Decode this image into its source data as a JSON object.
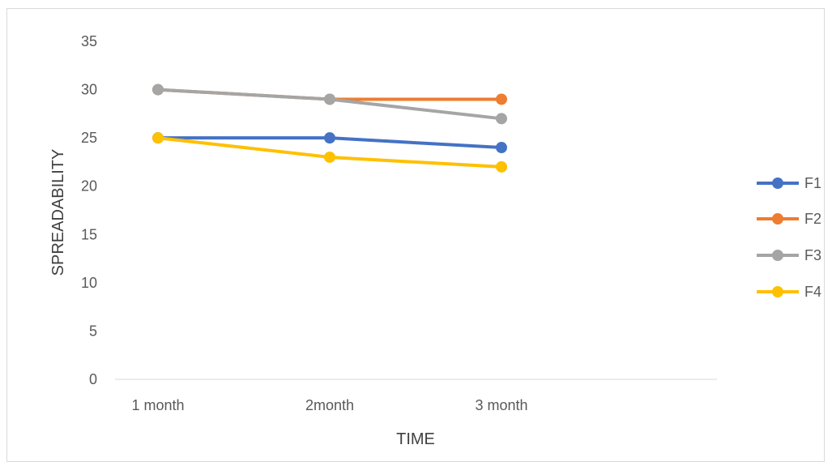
{
  "chart_data": {
    "type": "line",
    "title": "",
    "xlabel": "TIME",
    "ylabel": "SPREADABILITY",
    "categories": [
      "1 month",
      "2month",
      "3 month"
    ],
    "ylim": [
      0,
      35
    ],
    "yticks": [
      0,
      5,
      10,
      15,
      20,
      25,
      30,
      35
    ],
    "grid": false,
    "legend_position": "right",
    "series": [
      {
        "name": "F1",
        "color": "#4472C4",
        "values": [
          25,
          25,
          24
        ]
      },
      {
        "name": "F2",
        "color": "#ED7D31",
        "values": [
          30,
          29,
          29
        ]
      },
      {
        "name": "F3",
        "color": "#A5A5A5",
        "values": [
          30,
          29,
          27
        ]
      },
      {
        "name": "F4",
        "color": "#FFC000",
        "values": [
          25,
          23,
          22
        ]
      }
    ]
  }
}
